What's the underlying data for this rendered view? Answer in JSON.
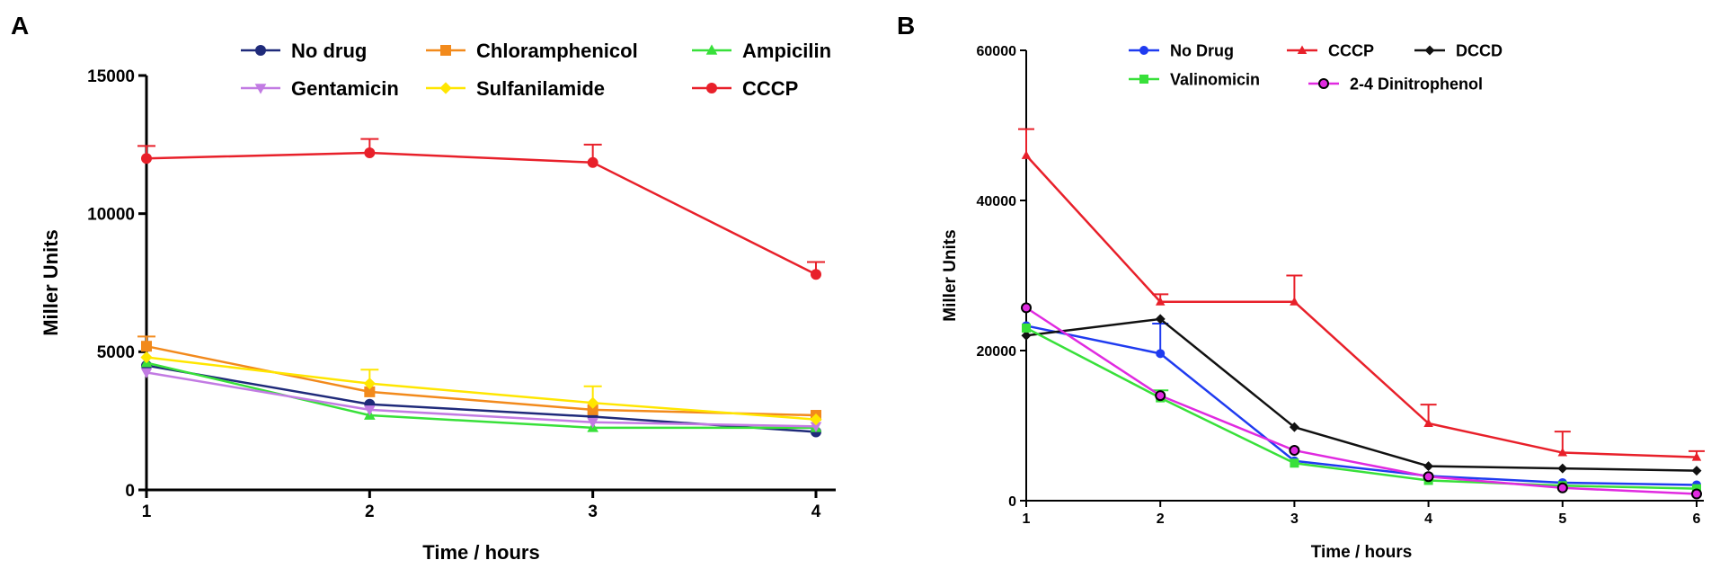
{
  "chart_data": [
    {
      "type": "line",
      "panel_label": "A",
      "xlabel": "Time / hours",
      "ylabel": "Miller Units",
      "x": [
        1,
        2,
        3,
        4
      ],
      "xticks": [
        "1",
        "2",
        "3",
        "4"
      ],
      "yticks": [
        "0",
        "5000",
        "10000",
        "15000"
      ],
      "ylim": [
        0,
        15000
      ],
      "xlim": [
        1,
        4
      ],
      "grid": false,
      "legend_position": "top",
      "series": [
        {
          "name": "No drug",
          "color": "#1f2a7a",
          "marker": "circle",
          "values": [
            4500,
            3100,
            2650,
            2100
          ],
          "errors": [
            0,
            0,
            0,
            0
          ]
        },
        {
          "name": "Chloramphenicol",
          "color": "#f28a1c",
          "marker": "square",
          "values": [
            5200,
            3550,
            2900,
            2700
          ],
          "errors": [
            350,
            0,
            0,
            0
          ]
        },
        {
          "name": "Ampicilin",
          "color": "#38e03a",
          "marker": "triangle-up",
          "values": [
            4600,
            2700,
            2250,
            2250
          ],
          "errors": [
            0,
            0,
            0,
            0
          ]
        },
        {
          "name": "Gentamicin",
          "color": "#c27be3",
          "marker": "triangle-down",
          "values": [
            4250,
            2900,
            2450,
            2300
          ],
          "errors": [
            0,
            0,
            0,
            0
          ]
        },
        {
          "name": "Sulfanilamide",
          "color": "#ffe600",
          "marker": "diamond",
          "values": [
            4800,
            3850,
            3150,
            2550
          ],
          "errors": [
            0,
            500,
            600,
            0
          ]
        },
        {
          "name": "CCCP",
          "color": "#e8202a",
          "marker": "circle",
          "values": [
            12000,
            12200,
            11850,
            7800
          ],
          "errors": [
            450,
            500,
            650,
            450
          ]
        }
      ]
    },
    {
      "type": "line",
      "panel_label": "B",
      "xlabel": "Time / hours",
      "ylabel": "Miller Units",
      "x": [
        1,
        2,
        3,
        4,
        5,
        6
      ],
      "xticks": [
        "1",
        "2",
        "3",
        "4",
        "5",
        "6"
      ],
      "yticks": [
        "0",
        "20000",
        "40000",
        "60000"
      ],
      "ylim": [
        0,
        60000
      ],
      "xlim": [
        1,
        6
      ],
      "grid": false,
      "legend_position": "top",
      "series": [
        {
          "name": "No Drug",
          "color": "#1f3bf0",
          "marker": "circle",
          "values": [
            23300,
            19600,
            5300,
            3300,
            2400,
            2100
          ],
          "errors": [
            0,
            4000,
            0,
            0,
            0,
            0
          ]
        },
        {
          "name": "CCCP",
          "color": "#e8202a",
          "marker": "triangle-up",
          "values": [
            46000,
            26500,
            26500,
            10300,
            6400,
            5800
          ],
          "errors": [
            3500,
            1000,
            3500,
            2500,
            2800,
            800
          ]
        },
        {
          "name": "DCCD",
          "color": "#111111",
          "marker": "diamond",
          "values": [
            22000,
            24200,
            9800,
            4600,
            4300,
            4000
          ],
          "errors": [
            0,
            0,
            0,
            0,
            0,
            0
          ]
        },
        {
          "name": "Valinomicin",
          "color": "#38e03a",
          "marker": "square",
          "values": [
            23000,
            13700,
            5000,
            2700,
            2000,
            1600
          ],
          "errors": [
            0,
            1000,
            0,
            0,
            0,
            0
          ]
        },
        {
          "name": "2-4 Dinitrophenol",
          "color": "#e02ae0",
          "marker": "circle-outline",
          "values": [
            25700,
            14000,
            6700,
            3200,
            1700,
            900
          ],
          "errors": [
            0,
            0,
            0,
            0,
            0,
            0
          ]
        }
      ]
    }
  ]
}
